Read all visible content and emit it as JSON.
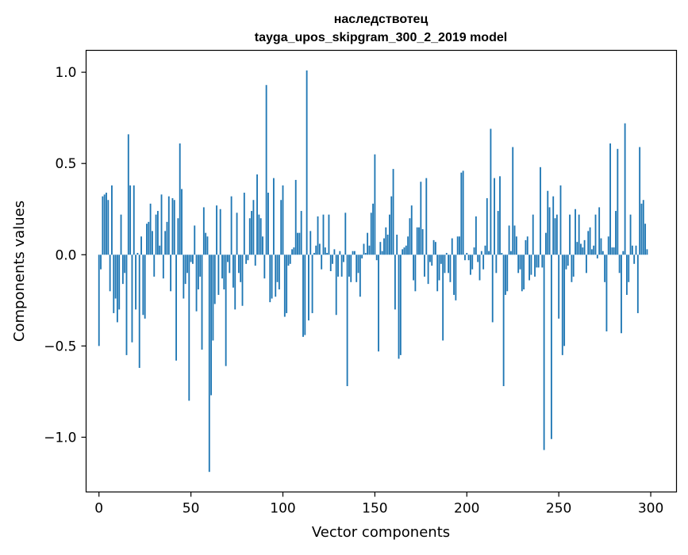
{
  "chart_data": {
    "type": "bar",
    "title": "наследствотец",
    "subtitle": "tayga_upos_skipgram_300_2_2019 model",
    "xlabel": "Vector components",
    "ylabel": "Components values",
    "xlim": [
      -7,
      314
    ],
    "ylim": [
      -1.3,
      1.12
    ],
    "grid": false,
    "bar_color": "#1f77b4",
    "x_ticks": [
      0,
      50,
      100,
      150,
      200,
      250,
      300
    ],
    "x_tick_labels": [
      "0",
      "50",
      "100",
      "150",
      "200",
      "250",
      "300"
    ],
    "y_ticks": [
      1.0,
      0.5,
      0.0,
      -0.5,
      -1.0
    ],
    "y_tick_labels": [
      "1.0",
      "0.5",
      "0.0",
      "−0.5",
      "−1.0"
    ],
    "values": [
      -0.5,
      -0.08,
      0.32,
      0.33,
      0.34,
      0.3,
      -0.2,
      0.38,
      -0.32,
      -0.24,
      -0.37,
      -0.3,
      0.22,
      -0.16,
      -0.1,
      -0.55,
      0.66,
      0.38,
      -0.48,
      0.38,
      -0.3,
      0.01,
      -0.62,
      0.1,
      -0.33,
      -0.35,
      0.17,
      0.18,
      0.28,
      0.13,
      -0.12,
      0.22,
      0.24,
      0.05,
      0.33,
      -0.13,
      0.13,
      0.18,
      0.32,
      -0.2,
      0.31,
      0.3,
      -0.58,
      0.2,
      0.61,
      0.36,
      -0.24,
      -0.16,
      -0.1,
      -0.8,
      -0.04,
      -0.05,
      0.16,
      -0.31,
      -0.19,
      -0.12,
      -0.52,
      0.26,
      0.12,
      0.1,
      -1.19,
      -0.77,
      -0.47,
      -0.27,
      0.27,
      -0.22,
      0.25,
      -0.13,
      -0.19,
      -0.61,
      -0.04,
      -0.1,
      0.32,
      -0.18,
      -0.3,
      0.23,
      -0.1,
      -0.15,
      -0.28,
      0.34,
      -0.05,
      -0.03,
      0.2,
      0.24,
      0.3,
      -0.06,
      0.44,
      0.22,
      0.2,
      0.1,
      -0.13,
      0.93,
      0.34,
      -0.26,
      -0.24,
      0.42,
      -0.23,
      -0.15,
      -0.19,
      0.3,
      0.38,
      -0.34,
      -0.32,
      -0.06,
      -0.05,
      0.03,
      0.04,
      0.41,
      0.12,
      0.12,
      0.24,
      -0.45,
      -0.44,
      1.01,
      -0.36,
      0.13,
      -0.32,
      0.01,
      0.05,
      0.21,
      0.06,
      -0.08,
      0.22,
      0.04,
      0.01,
      0.22,
      -0.09,
      -0.05,
      0.03,
      -0.33,
      -0.12,
      0.02,
      -0.12,
      -0.04,
      0.23,
      -0.72,
      -0.12,
      -0.15,
      0.02,
      0.02,
      -0.15,
      -0.1,
      -0.23,
      -0.02,
      0.06,
      0.01,
      0.12,
      0.05,
      0.23,
      0.28,
      0.55,
      -0.03,
      -0.53,
      0.07,
      0.02,
      0.09,
      0.15,
      0.11,
      0.22,
      0.32,
      0.47,
      -0.3,
      0.11,
      -0.57,
      -0.55,
      0.03,
      0.04,
      0.05,
      0.1,
      0.2,
      0.27,
      -0.14,
      -0.2,
      0.15,
      0.15,
      0.4,
      0.14,
      -0.12,
      0.42,
      -0.16,
      -0.04,
      -0.06,
      0.08,
      0.07,
      -0.2,
      -0.14,
      -0.05,
      -0.47,
      -0.1,
      0.01,
      -0.1,
      -0.15,
      0.09,
      -0.22,
      -0.25,
      0.1,
      0.1,
      0.45,
      0.46,
      -0.03,
      0.01,
      -0.03,
      -0.11,
      -0.08,
      0.04,
      0.21,
      -0.04,
      -0.14,
      0.02,
      -0.08,
      0.05,
      0.31,
      0.02,
      0.69,
      -0.37,
      0.42,
      -0.1,
      0.24,
      0.43,
      0.01,
      -0.72,
      -0.22,
      -0.2,
      0.16,
      0.02,
      0.59,
      0.16,
      0.1,
      -0.1,
      -0.08,
      -0.2,
      -0.19,
      0.08,
      0.1,
      -0.14,
      -0.11,
      0.22,
      -0.12,
      -0.07,
      -0.07,
      0.48,
      -0.07,
      -1.07,
      0.12,
      0.35,
      0.26,
      -1.01,
      0.32,
      0.2,
      0.22,
      -0.35,
      0.38,
      -0.55,
      -0.5,
      -0.08,
      -0.06,
      0.22,
      -0.15,
      -0.12,
      0.25,
      0.07,
      0.22,
      0.06,
      0.04,
      0.08,
      -0.1,
      0.13,
      0.15,
      0.03,
      0.05,
      0.22,
      -0.02,
      0.26,
      0.09,
      0.02,
      -0.15,
      -0.42,
      0.1,
      0.61,
      0.04,
      0.04,
      0.24,
      0.58,
      -0.1,
      -0.43,
      0.02,
      0.72,
      -0.22,
      -0.15,
      0.22,
      0.05,
      -0.05,
      0.05,
      -0.32,
      0.59,
      0.28,
      0.3,
      0.17,
      0.03
    ]
  }
}
